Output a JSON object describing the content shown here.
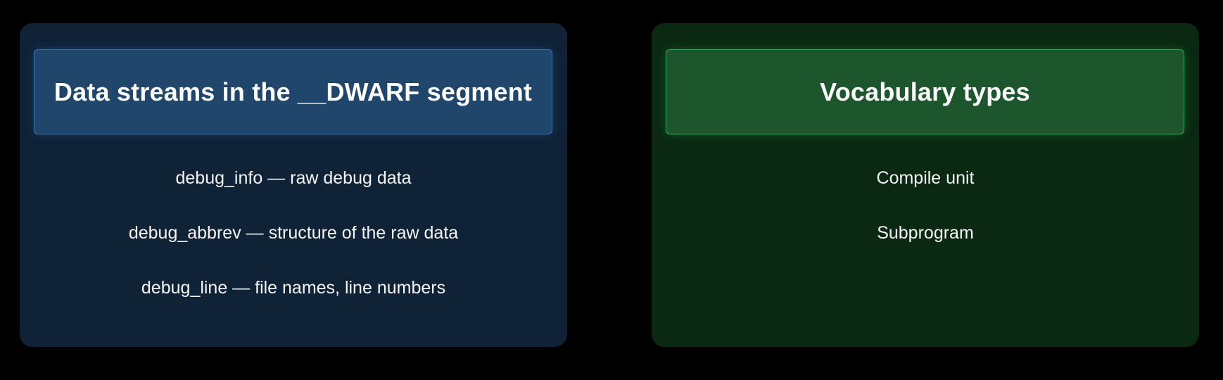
{
  "panels": {
    "left": {
      "title": "Data streams in the __DWARF segment",
      "items": [
        "debug_info — raw debug data",
        "debug_abbrev — structure of the raw data",
        "debug_line — file names, line numbers"
      ]
    },
    "right": {
      "title": "Vocabulary types",
      "items": [
        "Compile unit",
        "Subprogram"
      ]
    }
  },
  "colors": {
    "left_panel": "#0f2236",
    "left_header": "#21466b",
    "right_panel": "#0a2812",
    "right_header": "#1d552c"
  }
}
